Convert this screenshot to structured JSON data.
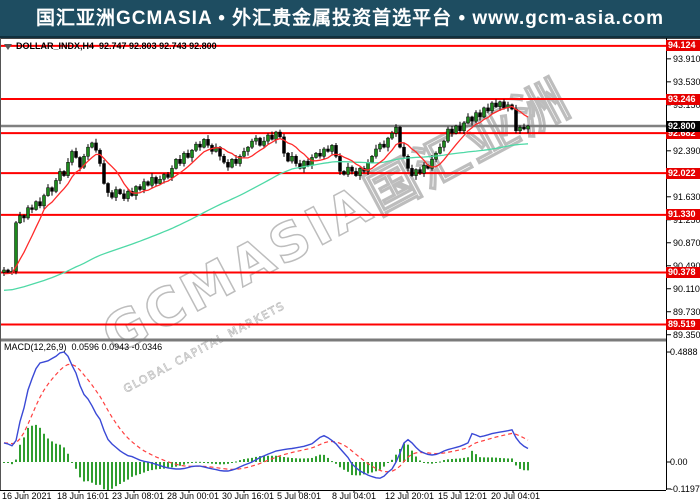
{
  "header": {
    "title": "国汇亚洲GCMASIA • 外汇贵金属投资首选平台 • www.gcm-asia.com",
    "bg_color": "#1e4d61"
  },
  "chart": {
    "symbol_period": "DOLLAR_INDX,H4",
    "ohlc": "92.747 92.803 92.743 92.800",
    "watermark": {
      "main": "GCMASIA国汇亚洲",
      "sub": "GLOBAL CAPITAL MARKETS"
    },
    "colors": {
      "level_line": "#ff0000",
      "current_line": "#808080",
      "bull": "#1c8a1c",
      "bear": "#000000",
      "ma_fast": "#ff2a2a",
      "ma_slow": "#4fd9a6",
      "macd_line": "#3a49d6",
      "macd_signal": "#ff4040",
      "histogram": "#2f9e2f",
      "tag_red_bg": "#e60000",
      "tag_black_bg": "#000000",
      "watermark": "#bdbdbd",
      "axis": "#000000",
      "divider": "#7a7a7a"
    }
  },
  "macd_panel": {
    "label": "MACD(12,26,9)",
    "values_text": "0.0596 0.0943 -0.0346"
  },
  "chart_data": {
    "type": "candlestick",
    "title": "DOLLAR_INDX,H4",
    "timeframe": "H4",
    "x_labels": [
      "16 Jun 2021",
      "18 Jun 16:01",
      "23 Jun 08:01",
      "28 Jun 00:01",
      "30 Jun 16:01",
      "5 Jul 08:01",
      "8 Jul 04:01",
      "12 Jul 20:01",
      "15 Jul 12:01",
      "20 Jul 04:01"
    ],
    "price_ticks": [
      "93.910",
      "93.530",
      "93.150",
      "92.390",
      "91.630",
      "91.250",
      "90.870",
      "90.490",
      "90.110",
      "89.730",
      "89.350"
    ],
    "level_lines": [
      "94.124",
      "93.246",
      "92.682",
      "92.022",
      "91.330",
      "90.378",
      "89.519"
    ],
    "current_price": "92.800",
    "ylim": [
      89.35,
      94.2
    ],
    "grid": false,
    "closes": [
      90.42,
      90.38,
      90.4,
      91.2,
      91.32,
      91.28,
      91.45,
      91.42,
      91.55,
      91.48,
      91.65,
      91.78,
      91.72,
      91.9,
      92.05,
      91.98,
      92.2,
      92.38,
      92.28,
      92.12,
      92.3,
      92.45,
      92.52,
      92.4,
      92.18,
      91.85,
      91.7,
      91.62,
      91.75,
      91.68,
      91.6,
      91.72,
      91.65,
      91.8,
      91.75,
      91.88,
      91.82,
      91.95,
      91.85,
      91.92,
      92.0,
      91.95,
      92.1,
      92.25,
      92.18,
      92.35,
      92.28,
      92.4,
      92.5,
      92.45,
      92.58,
      92.48,
      92.38,
      92.45,
      92.3,
      92.2,
      92.12,
      92.25,
      92.18,
      92.3,
      92.38,
      92.45,
      92.55,
      92.6,
      92.48,
      92.55,
      92.65,
      92.58,
      92.7,
      92.62,
      92.35,
      92.22,
      92.3,
      92.18,
      92.1,
      92.22,
      92.15,
      92.28,
      92.35,
      92.3,
      92.42,
      92.38,
      92.48,
      92.3,
      92.05,
      92.0,
      92.12,
      92.05,
      91.98,
      92.1,
      92.05,
      92.2,
      92.3,
      92.42,
      92.5,
      92.45,
      92.6,
      92.68,
      92.78,
      92.45,
      92.3,
      92.1,
      91.98,
      92.08,
      92.02,
      92.15,
      92.1,
      92.25,
      92.35,
      92.45,
      92.55,
      92.75,
      92.68,
      92.8,
      92.72,
      92.85,
      92.95,
      92.88,
      93.02,
      92.95,
      93.1,
      93.05,
      93.18,
      93.12,
      93.2,
      93.1,
      93.15,
      93.08,
      92.72,
      92.78,
      92.75,
      92.8
    ],
    "wick_pattern": [
      0.05,
      0.02,
      0.07,
      0.03,
      0.06,
      0.02,
      0.04
    ],
    "ma_fast": {
      "period": 8,
      "seed": 90.35
    },
    "ma_slow": {
      "period": 70,
      "seed": 90.08
    },
    "macd_values": [
      0.085,
      0.08,
      0.072,
      0.095,
      0.18,
      0.24,
      0.32,
      0.37,
      0.415,
      0.44,
      0.445,
      0.45,
      0.46,
      0.47,
      0.485,
      0.489,
      0.47,
      0.43,
      0.395,
      0.34,
      0.3,
      0.28,
      0.25,
      0.215,
      0.19,
      0.14,
      0.1,
      0.08,
      0.065,
      0.05,
      0.038,
      0.028,
      0.024,
      0.016,
      0.008,
      0.003,
      0.0,
      -0.005,
      -0.01,
      -0.016,
      -0.022,
      -0.026,
      -0.029,
      -0.031,
      -0.031,
      -0.029,
      -0.025,
      -0.02,
      -0.018,
      -0.018,
      -0.022,
      -0.026,
      -0.03,
      -0.034,
      -0.038,
      -0.04,
      -0.04,
      -0.036,
      -0.03,
      -0.022,
      -0.014,
      -0.007,
      0.0,
      0.01,
      0.02,
      0.027,
      0.035,
      0.042,
      0.049,
      0.052,
      0.055,
      0.058,
      0.06,
      0.063,
      0.066,
      0.07,
      0.075,
      0.081,
      0.095,
      0.11,
      0.117,
      0.108,
      0.095,
      0.081,
      0.06,
      0.04,
      0.02,
      -0.009,
      -0.025,
      -0.04,
      -0.049,
      -0.058,
      -0.065,
      -0.07,
      -0.072,
      -0.063,
      -0.045,
      -0.031,
      0.0,
      0.04,
      0.085,
      0.099,
      0.085,
      0.065,
      0.049,
      0.04,
      0.034,
      0.031,
      0.034,
      0.04,
      0.049,
      0.055,
      0.06,
      0.065,
      0.07,
      0.077,
      0.085,
      0.126,
      0.12,
      0.112,
      0.116,
      0.121,
      0.126,
      0.13,
      0.133,
      0.136,
      0.139,
      0.143,
      0.108,
      0.085,
      0.07,
      0.06
    ],
    "macd_signal_period": 9,
    "macd_ticks": [
      {
        "label": "0.4888",
        "value": 0.4888
      },
      {
        "label": "0.00",
        "value": 0
      },
      {
        "label": "-0.1197",
        "value": -0.1197
      }
    ]
  }
}
